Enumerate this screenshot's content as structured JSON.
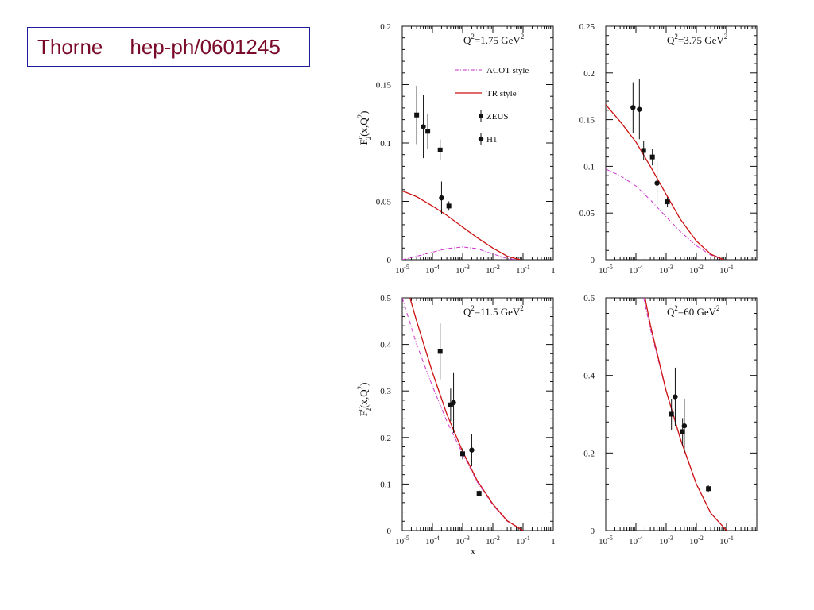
{
  "reference": {
    "author": "Thorne",
    "arxiv": "hep-ph/0601245"
  },
  "colors": {
    "acot": "#cc33cc",
    "tr": "#cc1111",
    "data": "#111111",
    "reference_text": "#7a0a2a",
    "reference_border": "#1c1c9c"
  },
  "legend_labels": {
    "acot": "ACOT style",
    "tr": "TR style",
    "zeus": "ZEUS",
    "h1": "H1"
  },
  "ylabel": {
    "f": "F",
    "sup": "c",
    "sub": "2",
    "args": "(x,Q",
    "args_sup": "2",
    "close": ")"
  },
  "xlabel": "x",
  "chart_data": [
    {
      "type": "line",
      "title": {
        "prefix": "Q",
        "sup": "2",
        "value": "=1.75 GeV",
        "unit_sup": "2"
      },
      "xscale": "log",
      "xlim": [
        1e-05,
        1
      ],
      "ylim": [
        0,
        0.2
      ],
      "yticks": [
        "0",
        "0.05",
        "0.1",
        "0.15",
        "0.2"
      ],
      "xticks": [
        {
          "base": "10",
          "exp": "-5",
          "value": 1e-05
        },
        {
          "base": "10",
          "exp": "-4",
          "value": 0.0001
        },
        {
          "base": "10",
          "exp": "-3",
          "value": 0.001
        },
        {
          "base": "10",
          "exp": "-2",
          "value": 0.01
        },
        {
          "base": "10",
          "exp": "-1",
          "value": 0.1
        },
        {
          "base": "1",
          "exp": "",
          "value": 1
        }
      ],
      "legend": "top-right",
      "ylabel_shown": true,
      "xlabel_shown": false,
      "series": [
        {
          "name": "ACOT style",
          "style": "dashdot",
          "points": [
            [
              1e-05,
              0.0
            ],
            [
              3e-05,
              0.003
            ],
            [
              0.0001,
              0.0065
            ],
            [
              0.0003,
              0.0095
            ],
            [
              0.001,
              0.011
            ],
            [
              0.003,
              0.0095
            ],
            [
              0.01,
              0.005
            ],
            [
              0.03,
              0.001
            ],
            [
              0.06,
              0.0
            ]
          ]
        },
        {
          "name": "TR style",
          "style": "solid",
          "points": [
            [
              1e-05,
              0.059
            ],
            [
              3e-05,
              0.054
            ],
            [
              0.0001,
              0.046
            ],
            [
              0.0003,
              0.038
            ],
            [
              0.001,
              0.028
            ],
            [
              0.003,
              0.019
            ],
            [
              0.01,
              0.01
            ],
            [
              0.03,
              0.003
            ],
            [
              0.08,
              0.0
            ]
          ]
        }
      ],
      "data": [
        {
          "name": "ZEUS",
          "marker": "square",
          "points": [
            [
              3e-05,
              0.124,
              0.025
            ],
            [
              7e-05,
              0.11,
              0.015
            ],
            [
              0.00018,
              0.094,
              0.009
            ],
            [
              0.00035,
              0.046,
              0.004
            ]
          ]
        },
        {
          "name": "H1",
          "marker": "circle",
          "points": [
            [
              5e-05,
              0.114,
              0.027
            ],
            [
              0.0002,
              0.053,
              0.014
            ]
          ]
        }
      ]
    },
    {
      "type": "line",
      "title": {
        "prefix": "Q",
        "sup": "2",
        "value": "=3.75 GeV",
        "unit_sup": "2"
      },
      "xscale": "log",
      "xlim": [
        1e-05,
        1
      ],
      "ylim": [
        0,
        0.25
      ],
      "yticks": [
        "0",
        "0.05",
        "0.1",
        "0.15",
        "0.2",
        "0.25"
      ],
      "xticks": [
        {
          "base": "10",
          "exp": "-5",
          "value": 1e-05
        },
        {
          "base": "10",
          "exp": "-4",
          "value": 0.0001
        },
        {
          "base": "10",
          "exp": "-3",
          "value": 0.001
        },
        {
          "base": "10",
          "exp": "-2",
          "value": 0.01
        },
        {
          "base": "10",
          "exp": "-1",
          "value": 0.1
        }
      ],
      "legend": "",
      "ylabel_shown": false,
      "xlabel_shown": false,
      "series": [
        {
          "name": "ACOT style",
          "style": "dashdot",
          "points": [
            [
              1e-05,
              0.097
            ],
            [
              3e-05,
              0.09
            ],
            [
              0.0001,
              0.079
            ],
            [
              0.0003,
              0.064
            ],
            [
              0.001,
              0.046
            ],
            [
              0.003,
              0.03
            ],
            [
              0.01,
              0.015
            ],
            [
              0.03,
              0.005
            ],
            [
              0.08,
              0.0
            ]
          ]
        },
        {
          "name": "TR style",
          "style": "solid",
          "points": [
            [
              1e-05,
              0.166
            ],
            [
              3e-05,
              0.148
            ],
            [
              0.0001,
              0.126
            ],
            [
              0.0003,
              0.1
            ],
            [
              0.001,
              0.07
            ],
            [
              0.003,
              0.043
            ],
            [
              0.01,
              0.02
            ],
            [
              0.03,
              0.006
            ],
            [
              0.08,
              0.0
            ]
          ]
        }
      ],
      "data": [
        {
          "name": "ZEUS",
          "marker": "square",
          "points": [
            [
              0.00018,
              0.117,
              0.01
            ],
            [
              0.00035,
              0.11,
              0.009
            ],
            [
              0.0011,
              0.062,
              0.005
            ]
          ]
        },
        {
          "name": "H1",
          "marker": "circle",
          "points": [
            [
              8e-05,
              0.163,
              0.027
            ],
            [
              0.00013,
              0.161,
              0.032
            ],
            [
              0.0005,
              0.082,
              0.023
            ]
          ]
        }
      ]
    },
    {
      "type": "line",
      "title": {
        "prefix": "Q",
        "sup": "2",
        "value": "=11.5 GeV",
        "unit_sup": "2"
      },
      "xscale": "log",
      "xlim": [
        1e-05,
        1
      ],
      "ylim": [
        0,
        0.5
      ],
      "yticks": [
        "0",
        "0.1",
        "0.2",
        "0.3",
        "0.4",
        "0.5"
      ],
      "xticks": [
        {
          "base": "10",
          "exp": "-5",
          "value": 1e-05
        },
        {
          "base": "10",
          "exp": "-4",
          "value": 0.0001
        },
        {
          "base": "10",
          "exp": "-3",
          "value": 0.001
        },
        {
          "base": "10",
          "exp": "-2",
          "value": 0.01
        },
        {
          "base": "10",
          "exp": "-1",
          "value": 0.1
        },
        {
          "base": "1",
          "exp": "",
          "value": 1
        }
      ],
      "legend": "",
      "ylabel_shown": true,
      "xlabel_shown": true,
      "series": [
        {
          "name": "ACOT style",
          "style": "dashdot",
          "points": [
            [
              1e-05,
              0.5
            ],
            [
              3e-05,
              0.4
            ],
            [
              0.0001,
              0.31
            ],
            [
              0.0003,
              0.235
            ],
            [
              0.001,
              0.165
            ],
            [
              0.003,
              0.105
            ],
            [
              0.01,
              0.055
            ],
            [
              0.03,
              0.02
            ],
            [
              0.1,
              0.0
            ]
          ]
        },
        {
          "name": "TR style",
          "style": "solid",
          "points": [
            [
              1.8e-05,
              0.5
            ],
            [
              3e-05,
              0.45
            ],
            [
              0.0001,
              0.34
            ],
            [
              0.0003,
              0.25
            ],
            [
              0.001,
              0.17
            ],
            [
              0.003,
              0.108
            ],
            [
              0.01,
              0.057
            ],
            [
              0.03,
              0.021
            ],
            [
              0.1,
              0.0
            ]
          ]
        }
      ],
      "data": [
        {
          "name": "ZEUS",
          "marker": "square",
          "points": [
            [
              0.00018,
              0.385,
              0.06
            ],
            [
              0.0004,
              0.27,
              0.035
            ],
            [
              0.001,
              0.165,
              0.012
            ],
            [
              0.0035,
              0.08,
              0.007
            ]
          ]
        },
        {
          "name": "H1",
          "marker": "circle",
          "points": [
            [
              0.0005,
              0.275,
              0.065
            ],
            [
              0.002,
              0.173,
              0.035
            ]
          ]
        }
      ]
    },
    {
      "type": "line",
      "title": {
        "prefix": "Q",
        "sup": "2",
        "value": "=60 GeV",
        "unit_sup": "2"
      },
      "xscale": "log",
      "xlim": [
        1e-05,
        1
      ],
      "ylim": [
        0,
        0.6
      ],
      "yticks": [
        "0",
        "0.2",
        "0.4",
        "0.6"
      ],
      "xticks": [
        {
          "base": "10",
          "exp": "-5",
          "value": 1e-05
        },
        {
          "base": "10",
          "exp": "-4",
          "value": 0.0001
        },
        {
          "base": "10",
          "exp": "-3",
          "value": 0.001
        },
        {
          "base": "10",
          "exp": "-2",
          "value": 0.01
        },
        {
          "base": "10",
          "exp": "-1",
          "value": 0.1
        }
      ],
      "legend": "",
      "ylabel_shown": false,
      "xlabel_shown": false,
      "series": [
        {
          "name": "ACOT style",
          "style": "dashdot",
          "points": [
            [
              0.00018,
              0.6
            ],
            [
              0.0003,
              0.52
            ],
            [
              0.001,
              0.36
            ],
            [
              0.003,
              0.235
            ],
            [
              0.01,
              0.12
            ],
            [
              0.03,
              0.045
            ],
            [
              0.1,
              0.0
            ]
          ]
        },
        {
          "name": "TR style",
          "style": "solid",
          "points": [
            [
              0.0002,
              0.6
            ],
            [
              0.0003,
              0.53
            ],
            [
              0.001,
              0.36
            ],
            [
              0.003,
              0.235
            ],
            [
              0.01,
              0.12
            ],
            [
              0.03,
              0.045
            ],
            [
              0.1,
              0.0
            ]
          ]
        }
      ],
      "data": [
        {
          "name": "ZEUS",
          "marker": "square",
          "points": [
            [
              0.0015,
              0.3,
              0.04
            ],
            [
              0.0035,
              0.255,
              0.035
            ],
            [
              0.025,
              0.108,
              0.01
            ]
          ]
        },
        {
          "name": "H1",
          "marker": "circle",
          "points": [
            [
              0.002,
              0.345,
              0.075
            ],
            [
              0.004,
              0.27,
              0.07
            ]
          ]
        }
      ]
    }
  ]
}
